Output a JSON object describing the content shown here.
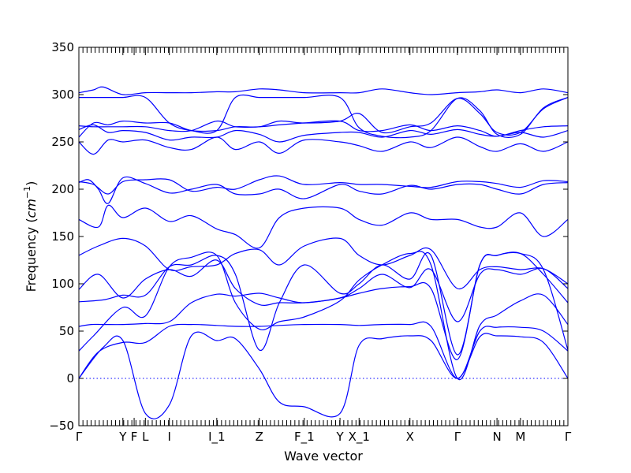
{
  "chart_data": {
    "type": "line",
    "title": "",
    "xlabel": "Wave vector",
    "ylabel_main": "Frequency (",
    "ylabel_unit": "cm",
    "ylabel_exp": "−1",
    "ylabel_close": ")",
    "ylim": [
      -50,
      350
    ],
    "xlim": [
      0,
      1
    ],
    "y_ticks": [
      -50,
      0,
      50,
      100,
      150,
      200,
      250,
      300,
      350
    ],
    "y_tick_labels": [
      "−50",
      "0",
      "50",
      "100",
      "150",
      "200",
      "250",
      "300",
      "350"
    ],
    "x_ticks": [
      {
        "label": "Γ",
        "x": 0.0
      },
      {
        "label": "Y",
        "x": 0.09
      },
      {
        "label": "F",
        "x": 0.113
      },
      {
        "label": "L",
        "x": 0.136
      },
      {
        "label": "I",
        "x": 0.185
      },
      {
        "label": "I_1",
        "x": 0.282
      },
      {
        "label": "Z",
        "x": 0.369
      },
      {
        "label": "F_1",
        "x": 0.461
      },
      {
        "label": "Y",
        "x": 0.534
      },
      {
        "label": "X_1",
        "x": 0.573
      },
      {
        "label": "X",
        "x": 0.677
      },
      {
        "label": "Γ",
        "x": 0.774
      },
      {
        "label": "N",
        "x": 0.855
      },
      {
        "label": "M",
        "x": 0.903
      },
      {
        "label": "Γ",
        "x": 1.0
      }
    ],
    "band_color": "#0000ff",
    "zero_line_color": "#0000ff",
    "grid": false,
    "series": [
      {
        "x": [
          0,
          0.05,
          0.09,
          0.136,
          0.185,
          0.23,
          0.282,
          0.32,
          0.369,
          0.41,
          0.461,
          0.534,
          0.573,
          0.62,
          0.677,
          0.72,
          0.774,
          0.82,
          0.855,
          0.903,
          0.95,
          1.0
        ],
        "values": [
          0,
          33,
          40,
          -37,
          -28,
          45,
          40,
          42,
          10,
          -25,
          -30,
          -37,
          35,
          42,
          45,
          40,
          0,
          44,
          45,
          44,
          38,
          0
        ]
      },
      {
        "x": [
          0,
          0.04,
          0.09,
          0.136,
          0.185,
          0.23,
          0.282,
          0.32,
          0.369,
          0.41,
          0.461,
          0.534,
          0.573,
          0.62,
          0.677,
          0.72,
          0.774,
          0.82,
          0.855,
          0.903,
          0.95,
          1.0
        ],
        "values": [
          0,
          28,
          38,
          38,
          55,
          57,
          56,
          55,
          55,
          56,
          57,
          57,
          56,
          57,
          57,
          55,
          0,
          50,
          54,
          54,
          50,
          29
        ]
      },
      {
        "x": [
          0,
          0.03,
          0.09,
          0.136,
          0.185,
          0.23,
          0.282,
          0.32,
          0.369,
          0.41,
          0.461,
          0.534,
          0.573,
          0.62,
          0.677,
          0.72,
          0.774,
          0.82,
          0.855,
          0.903,
          0.95,
          1.0
        ],
        "values": [
          29,
          45,
          75,
          66,
          118,
          128,
          130,
          80,
          52,
          60,
          65,
          82,
          104,
          120,
          132,
          120,
          0,
          56,
          67,
          82,
          88,
          57
        ]
      },
      {
        "x": [
          0,
          0.025,
          0.05,
          0.09,
          0.136,
          0.185,
          0.23,
          0.282,
          0.32,
          0.369,
          0.41,
          0.461,
          0.534,
          0.573,
          0.62,
          0.677,
          0.72,
          0.774,
          0.82,
          0.855,
          0.903,
          0.95,
          1.0
        ],
        "values": [
          55,
          57,
          57,
          57,
          58,
          60,
          80,
          89,
          87,
          90,
          85,
          80,
          85,
          90,
          95,
          97,
          95,
          20,
          120,
          130,
          132,
          115,
          30
        ]
      },
      {
        "x": [
          0,
          0.05,
          0.09,
          0.136,
          0.185,
          0.23,
          0.282,
          0.32,
          0.369,
          0.41,
          0.461,
          0.534,
          0.573,
          0.62,
          0.677,
          0.72,
          0.774,
          0.82,
          0.855,
          0.903,
          0.95,
          1.0
        ],
        "values": [
          81,
          83,
          88,
          88,
          118,
          120,
          130,
          110,
          30,
          80,
          120,
          90,
          100,
          120,
          105,
          130,
          25,
          120,
          130,
          132,
          110,
          80
        ]
      },
      {
        "x": [
          0,
          0.04,
          0.09,
          0.136,
          0.185,
          0.23,
          0.282,
          0.32,
          0.369,
          0.41,
          0.461,
          0.534,
          0.573,
          0.62,
          0.677,
          0.72,
          0.774,
          0.82,
          0.855,
          0.903,
          0.95,
          1.0
        ],
        "values": [
          94,
          110,
          85,
          105,
          115,
          108,
          125,
          95,
          78,
          80,
          80,
          85,
          95,
          110,
          96,
          115,
          60,
          110,
          115,
          110,
          116,
          95
        ]
      },
      {
        "x": [
          0,
          0.04,
          0.09,
          0.136,
          0.185,
          0.23,
          0.282,
          0.32,
          0.369,
          0.41,
          0.461,
          0.534,
          0.573,
          0.62,
          0.677,
          0.72,
          0.774,
          0.82,
          0.855,
          0.903,
          0.95,
          1.0
        ],
        "values": [
          130,
          140,
          148,
          140,
          115,
          118,
          120,
          132,
          136,
          120,
          140,
          148,
          130,
          120,
          130,
          136,
          95,
          115,
          118,
          115,
          116,
          100
        ]
      },
      {
        "x": [
          0,
          0.04,
          0.06,
          0.09,
          0.136,
          0.185,
          0.23,
          0.282,
          0.32,
          0.369,
          0.41,
          0.461,
          0.534,
          0.573,
          0.62,
          0.677,
          0.72,
          0.774,
          0.82,
          0.855,
          0.903,
          0.95,
          1.0
        ],
        "values": [
          168,
          160,
          183,
          170,
          180,
          166,
          172,
          158,
          152,
          138,
          170,
          180,
          180,
          168,
          162,
          175,
          168,
          168,
          160,
          160,
          175,
          150,
          168
        ]
      },
      {
        "x": [
          0,
          0.02,
          0.04,
          0.06,
          0.09,
          0.136,
          0.185,
          0.23,
          0.282,
          0.32,
          0.369,
          0.41,
          0.461,
          0.534,
          0.573,
          0.62,
          0.677,
          0.72,
          0.774,
          0.82,
          0.855,
          0.903,
          0.95,
          1.0
        ],
        "values": [
          207,
          210,
          200,
          185,
          212,
          206,
          196,
          200,
          205,
          195,
          195,
          200,
          190,
          205,
          198,
          195,
          204,
          200,
          205,
          205,
          200,
          195,
          205,
          207
        ]
      },
      {
        "x": [
          0,
          0.03,
          0.06,
          0.09,
          0.136,
          0.185,
          0.23,
          0.282,
          0.32,
          0.369,
          0.41,
          0.461,
          0.534,
          0.573,
          0.62,
          0.677,
          0.72,
          0.774,
          0.82,
          0.855,
          0.903,
          0.95,
          1.0
        ],
        "values": [
          208,
          205,
          195,
          208,
          210,
          210,
          198,
          202,
          200,
          210,
          214,
          205,
          207,
          205,
          205,
          203,
          202,
          208,
          208,
          206,
          202,
          209,
          208
        ]
      },
      {
        "x": [
          0,
          0.03,
          0.06,
          0.09,
          0.136,
          0.185,
          0.23,
          0.282,
          0.32,
          0.369,
          0.41,
          0.461,
          0.534,
          0.573,
          0.62,
          0.677,
          0.72,
          0.774,
          0.82,
          0.855,
          0.903,
          0.95,
          1.0
        ],
        "values": [
          250,
          237,
          252,
          250,
          252,
          244,
          242,
          255,
          242,
          250,
          238,
          252,
          250,
          246,
          240,
          250,
          244,
          255,
          245,
          240,
          248,
          240,
          250
        ]
      },
      {
        "x": [
          0,
          0.03,
          0.06,
          0.09,
          0.136,
          0.185,
          0.23,
          0.282,
          0.32,
          0.369,
          0.41,
          0.461,
          0.534,
          0.573,
          0.62,
          0.677,
          0.72,
          0.774,
          0.82,
          0.855,
          0.903,
          0.95,
          1.0
        ],
        "values": [
          263,
          268,
          260,
          262,
          260,
          252,
          255,
          255,
          262,
          258,
          250,
          257,
          260,
          260,
          255,
          262,
          258,
          263,
          258,
          256,
          260,
          255,
          262
        ]
      },
      {
        "x": [
          0,
          0.03,
          0.06,
          0.09,
          0.136,
          0.185,
          0.23,
          0.282,
          0.32,
          0.369,
          0.41,
          0.461,
          0.534,
          0.573,
          0.62,
          0.677,
          0.72,
          0.774,
          0.82,
          0.855,
          0.903,
          0.95,
          1.0
        ],
        "values": [
          267,
          266,
          266,
          266,
          266,
          262,
          262,
          272,
          266,
          266,
          268,
          270,
          272,
          262,
          262,
          268,
          262,
          267,
          262,
          256,
          262,
          266,
          267
        ]
      },
      {
        "x": [
          0,
          0.03,
          0.06,
          0.09,
          0.136,
          0.185,
          0.23,
          0.282,
          0.32,
          0.369,
          0.41,
          0.461,
          0.534,
          0.573,
          0.62,
          0.677,
          0.72,
          0.774,
          0.82,
          0.855,
          0.903,
          0.95,
          1.0
        ],
        "values": [
          255,
          270,
          268,
          272,
          270,
          270,
          262,
          262,
          266,
          266,
          272,
          270,
          272,
          280,
          260,
          266,
          270,
          296,
          280,
          260,
          260,
          285,
          297
        ]
      },
      {
        "x": [
          0,
          0.03,
          0.06,
          0.09,
          0.136,
          0.185,
          0.23,
          0.282,
          0.32,
          0.369,
          0.41,
          0.461,
          0.534,
          0.573,
          0.62,
          0.677,
          0.72,
          0.774,
          0.82,
          0.855,
          0.903,
          0.95,
          1.0
        ],
        "values": [
          297,
          297,
          297,
          297,
          297,
          270,
          262,
          262,
          297,
          297,
          297,
          297,
          297,
          265,
          256,
          255,
          262,
          296,
          283,
          258,
          258,
          286,
          297
        ]
      },
      {
        "x": [
          0,
          0.03,
          0.05,
          0.09,
          0.136,
          0.185,
          0.23,
          0.282,
          0.32,
          0.369,
          0.41,
          0.461,
          0.534,
          0.573,
          0.62,
          0.677,
          0.72,
          0.774,
          0.82,
          0.855,
          0.903,
          0.95,
          1.0
        ],
        "values": [
          302,
          305,
          308,
          300,
          302,
          302,
          302,
          303,
          303,
          306,
          305,
          302,
          302,
          302,
          306,
          302,
          300,
          302,
          303,
          305,
          302,
          306,
          302
        ]
      }
    ]
  }
}
